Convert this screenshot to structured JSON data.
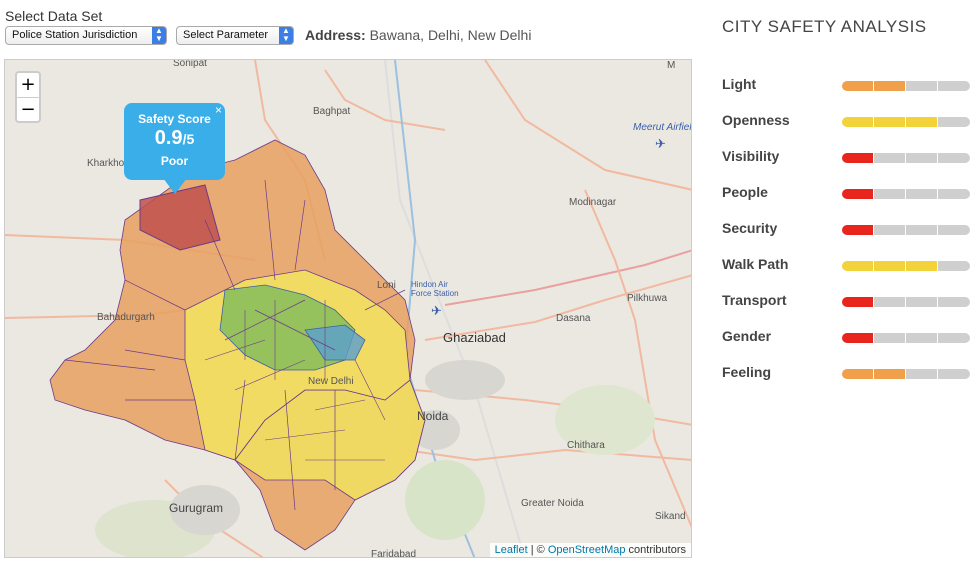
{
  "header": {
    "dataset_label": "Select Data Set",
    "dataset_select": "Police Station Jurisdiction",
    "parameter_select": "Select Parameter",
    "address_label": "Address:",
    "address_value": "Bawana, Delhi, New Delhi"
  },
  "map": {
    "zoom_in": "+",
    "zoom_out": "−",
    "popup": {
      "title": "Safety Score",
      "score": "0.9",
      "denominator": "/5",
      "grade": "Poor",
      "close": "×"
    },
    "places": [
      "Sonipat",
      "Baghpat",
      "Kharkhoda",
      "Meerut Airfield",
      "Modinagar",
      "Hindon Air Force Station",
      "Loni",
      "Bahadurgarh",
      "Ghaziabad",
      "Dasana",
      "Pilkhuwa",
      "New Delhi",
      "Noida",
      "Chithara",
      "Gurugram",
      "Greater Noida",
      "Faridabad",
      "Sikand",
      "M"
    ],
    "attribution": {
      "leaflet": "Leaflet",
      "sep": " | © ",
      "osm": "OpenStreetMap",
      "suffix": " contributors"
    }
  },
  "panel": {
    "title": "CITY SAFETY ANALYSIS",
    "metrics": [
      {
        "name": "Light",
        "level": 2,
        "color": "#f0a04b"
      },
      {
        "name": "Openness",
        "level": 3,
        "color": "#f2d43a"
      },
      {
        "name": "Visibility",
        "level": 1,
        "color": "#e8261e"
      },
      {
        "name": "People",
        "level": 1,
        "color": "#e8261e"
      },
      {
        "name": "Security",
        "level": 1,
        "color": "#e8261e"
      },
      {
        "name": "Walk Path",
        "level": 3,
        "color": "#f2d43a"
      },
      {
        "name": "Transport",
        "level": 1,
        "color": "#e8261e"
      },
      {
        "name": "Gender",
        "level": 1,
        "color": "#e8261e"
      },
      {
        "name": "Feeling",
        "level": 2,
        "color": "#f0a04b"
      }
    ]
  }
}
